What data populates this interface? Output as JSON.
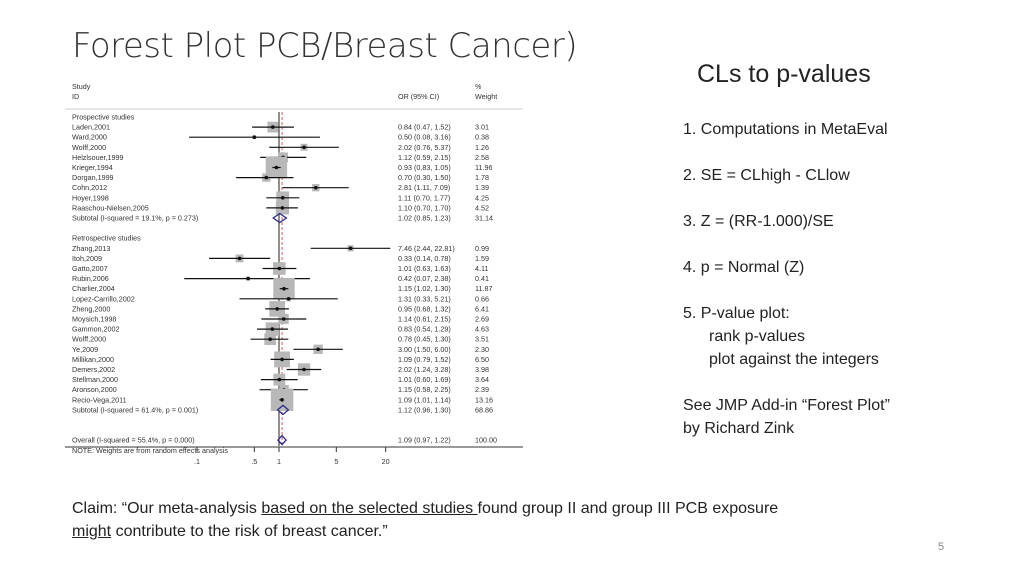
{
  "slide": {
    "title": "Forest Plot PCB/Breast Cancer)",
    "subtitle": "CLs to p-values",
    "steps": [
      "1.   Computations in MetaEval",
      "2.   SE = CLhigh   -    CLlow",
      "3.    Z = (RR-1.000)/SE",
      "4.   p =  Normal (Z)",
      "5.   P-value plot:",
      "rank p-values",
      "plot against the integers"
    ],
    "note_line1": "See JMP Add-in “Forest Plot”",
    "note_line2": "by Richard Zink",
    "claim": {
      "part1": "Claim: “Our meta-analysis ",
      "underlined1": "based on the selected studies ",
      "part2": "found group II and group III PCB exposure",
      "underlined2": "might",
      "part3": " contribute to the risk of breast cancer.”"
    },
    "page_number": "5"
  },
  "chart_data": {
    "type": "forest",
    "x_scale": "log",
    "xlim": [
      0.05,
      40
    ],
    "x_ticks": [
      ".1",
      ".5",
      "1",
      "5",
      "20"
    ],
    "x_tick_values": [
      0.1,
      0.5,
      1,
      5,
      20
    ],
    "null_line": 1,
    "overall_line": 1.09,
    "header": {
      "study": "Study",
      "id": "ID",
      "or": "OR (95% CI)",
      "pct": "%",
      "weight": "Weight"
    },
    "box_color": "#b8b8b8",
    "diamond_color": "#2a2a8a",
    "groups": [
      {
        "label": "Prospective studies",
        "studies": [
          {
            "study": "Laden,2001",
            "or": 0.84,
            "lo": 0.47,
            "hi": 1.52,
            "ci_text": "0.84 (0.47, 1.52)",
            "weight": "3.01"
          },
          {
            "study": "Ward,2000",
            "or": 0.5,
            "lo": 0.08,
            "hi": 3.16,
            "ci_text": "0.50 (0.08, 3.16)",
            "weight": "0.38"
          },
          {
            "study": "Wolff,2000",
            "or": 2.02,
            "lo": 0.76,
            "hi": 5.37,
            "ci_text": "2.02 (0.76, 5.37)",
            "weight": "1.26"
          },
          {
            "study": "Helzlsouer,1999",
            "or": 1.12,
            "lo": 0.59,
            "hi": 2.15,
            "ci_text": "1.12 (0.59, 2.15)",
            "weight": "2.58"
          },
          {
            "study": "Krieger,1994",
            "or": 0.93,
            "lo": 0.83,
            "hi": 1.05,
            "ci_text": "0.93 (0.83, 1.05)",
            "weight": "11.96"
          },
          {
            "study": "Dorgan,1999",
            "or": 0.7,
            "lo": 0.3,
            "hi": 1.5,
            "ci_text": "0.70 (0.30, 1.50)",
            "weight": "1.78"
          },
          {
            "study": "Cohn,2012",
            "or": 2.81,
            "lo": 1.11,
            "hi": 7.09,
            "ci_text": "2.81 (1.11, 7.09)",
            "weight": "1.39"
          },
          {
            "study": "Hoyer,1998",
            "or": 1.11,
            "lo": 0.7,
            "hi": 1.77,
            "ci_text": "1.11 (0.70, 1.77)",
            "weight": "4.25"
          },
          {
            "study": "Raaschou-Nielsen,2005",
            "or": 1.1,
            "lo": 0.7,
            "hi": 1.7,
            "ci_text": "1.10 (0.70, 1.70)",
            "weight": "4.52"
          }
        ],
        "subtotal": {
          "label": "Subtotal  (I-squared = 19.1%, p = 0.273)",
          "or": 1.02,
          "lo": 0.85,
          "hi": 1.23,
          "ci_text": "1.02 (0.85, 1.23)",
          "weight": "31.14"
        }
      },
      {
        "label": "Retrospective studies",
        "studies": [
          {
            "study": "Zhang,2013",
            "or": 7.46,
            "lo": 2.44,
            "hi": 22.81,
            "ci_text": "7.46 (2.44, 22.81)",
            "weight": "0.99"
          },
          {
            "study": "Itoh,2009",
            "or": 0.33,
            "lo": 0.14,
            "hi": 0.78,
            "ci_text": "0.33 (0.14, 0.78)",
            "weight": "1.59"
          },
          {
            "study": "Gatto,2007",
            "or": 1.01,
            "lo": 0.63,
            "hi": 1.63,
            "ci_text": "1.01 (0.63, 1.63)",
            "weight": "4.11"
          },
          {
            "study": "Rubin,2006",
            "or": 0.42,
            "lo": 0.07,
            "hi": 2.38,
            "ci_text": "0.42 (0.07, 2.38)",
            "weight": "0.41"
          },
          {
            "study": "Charlier,2004",
            "or": 1.15,
            "lo": 1.02,
            "hi": 1.3,
            "ci_text": "1.15 (1.02, 1.30)",
            "weight": "11.87"
          },
          {
            "study": "Lopez-Carrillo,2002",
            "or": 1.31,
            "lo": 0.33,
            "hi": 5.21,
            "ci_text": "1.31 (0.33, 5.21)",
            "weight": "0.66"
          },
          {
            "study": "Zheng,2000",
            "or": 0.95,
            "lo": 0.68,
            "hi": 1.32,
            "ci_text": "0.95 (0.68, 1.32)",
            "weight": "6.41"
          },
          {
            "study": "Moysich,1998",
            "or": 1.14,
            "lo": 0.61,
            "hi": 2.15,
            "ci_text": "1.14 (0.61, 2.15)",
            "weight": "2.69"
          },
          {
            "study": "Gammon,2002",
            "or": 0.83,
            "lo": 0.54,
            "hi": 1.29,
            "ci_text": "0.83 (0.54, 1.29)",
            "weight": "4.63"
          },
          {
            "study": "Wolff,2000",
            "or": 0.78,
            "lo": 0.45,
            "hi": 1.3,
            "ci_text": "0.78 (0.45, 1.30)",
            "weight": "3.51"
          },
          {
            "study": "Ye,2009",
            "or": 3.0,
            "lo": 1.5,
            "hi": 6.0,
            "ci_text": "3.00 (1.50, 6.00)",
            "weight": "2.30"
          },
          {
            "study": "Millikan,2000",
            "or": 1.09,
            "lo": 0.79,
            "hi": 1.52,
            "ci_text": "1.09 (0.79, 1.52)",
            "weight": "6.50"
          },
          {
            "study": "Demers,2002",
            "or": 2.02,
            "lo": 1.24,
            "hi": 3.28,
            "ci_text": "2.02 (1.24, 3.28)",
            "weight": "3.98"
          },
          {
            "study": "Stellman,2000",
            "or": 1.01,
            "lo": 0.6,
            "hi": 1.69,
            "ci_text": "1.01 (0.60, 1.69)",
            "weight": "3.64"
          },
          {
            "study": "Aronson,2000",
            "or": 1.15,
            "lo": 0.58,
            "hi": 2.25,
            "ci_text": "1.15 (0.58, 2.25)",
            "weight": "2.39"
          },
          {
            "study": "Recio-Vega,2011",
            "or": 1.09,
            "lo": 1.01,
            "hi": 1.14,
            "ci_text": "1.09 (1.01, 1.14)",
            "weight": "13.16"
          }
        ],
        "subtotal": {
          "label": "Subtotal  (I-squared = 61.4%, p = 0.001)",
          "or": 1.12,
          "lo": 0.96,
          "hi": 1.3,
          "ci_text": "1.12 (0.96, 1.30)",
          "weight": "68.86"
        }
      }
    ],
    "overall": {
      "label": "Overall  (I-squared = 55.4%, p = 0.000)",
      "or": 1.09,
      "lo": 0.97,
      "hi": 1.22,
      "ci_text": "1.09 (0.97, 1.22)",
      "weight": "100.00"
    },
    "footnote": "NOTE: Weights are from random effects analysis"
  }
}
